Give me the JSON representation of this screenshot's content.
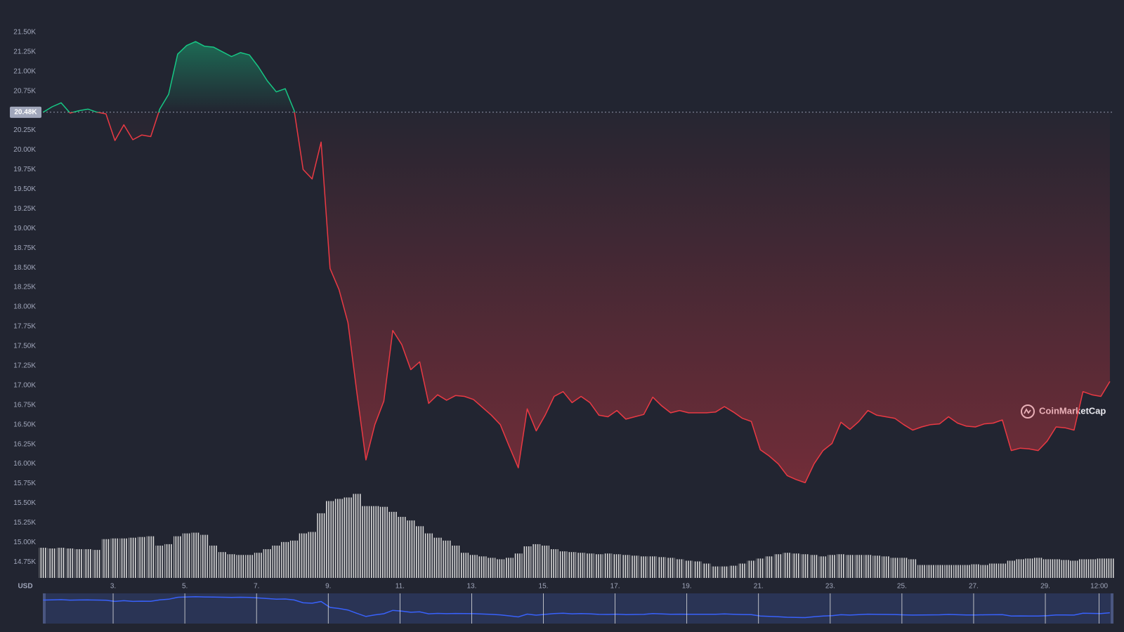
{
  "chart_data": {
    "type": "line",
    "currency": "USD",
    "watermark": "CoinMarketCap",
    "up_color": "#16c784",
    "down_color": "#ea3943",
    "volume_color": "#d9d9d9",
    "navigator_color": "#3861fb",
    "baseline": {
      "value": 20480,
      "label": "20.48K"
    },
    "xlim": [
      1.04,
      30.9
    ],
    "ylim": [
      14520,
      21910
    ],
    "vlim": [
      0,
      130
    ],
    "xticks": [
      {
        "value": 3,
        "label": "3."
      },
      {
        "value": 5,
        "label": "5."
      },
      {
        "value": 7,
        "label": "7."
      },
      {
        "value": 9,
        "label": "9."
      },
      {
        "value": 11,
        "label": "11."
      },
      {
        "value": 13,
        "label": "13."
      },
      {
        "value": 15,
        "label": "15."
      },
      {
        "value": 17,
        "label": "17."
      },
      {
        "value": 19,
        "label": "19."
      },
      {
        "value": 21,
        "label": "21."
      },
      {
        "value": 23,
        "label": "23."
      },
      {
        "value": 25,
        "label": "25."
      },
      {
        "value": 27,
        "label": "27."
      },
      {
        "value": 29,
        "label": "29."
      },
      {
        "value": 30.5,
        "label": "12:00"
      }
    ],
    "yticks": [
      {
        "value": 14750,
        "label": "14.75K"
      },
      {
        "value": 15000,
        "label": "15.00K"
      },
      {
        "value": 15250,
        "label": "15.25K"
      },
      {
        "value": 15500,
        "label": "15.50K"
      },
      {
        "value": 15750,
        "label": "15.75K"
      },
      {
        "value": 16000,
        "label": "16.00K"
      },
      {
        "value": 16250,
        "label": "16.25K"
      },
      {
        "value": 16500,
        "label": "16.50K"
      },
      {
        "value": 16750,
        "label": "16.75K"
      },
      {
        "value": 17000,
        "label": "17.00K"
      },
      {
        "value": 17250,
        "label": "17.25K"
      },
      {
        "value": 17500,
        "label": "17.50K"
      },
      {
        "value": 17750,
        "label": "17.75K"
      },
      {
        "value": 18000,
        "label": "18.00K"
      },
      {
        "value": 18250,
        "label": "18.25K"
      },
      {
        "value": 18500,
        "label": "18.50K"
      },
      {
        "value": 18750,
        "label": "18.75K"
      },
      {
        "value": 19000,
        "label": "19.00K"
      },
      {
        "value": 19250,
        "label": "19.25K"
      },
      {
        "value": 19500,
        "label": "19.50K"
      },
      {
        "value": 19750,
        "label": "19.75K"
      },
      {
        "value": 20000,
        "label": "20.00K"
      },
      {
        "value": 20250,
        "label": "20.25K"
      },
      {
        "value": 20500,
        "label": "20.50K"
      },
      {
        "value": 20750,
        "label": "20.75K"
      },
      {
        "value": 21000,
        "label": "21.00K"
      },
      {
        "value": 21250,
        "label": "21.25K"
      },
      {
        "value": 21500,
        "label": "21.50K"
      }
    ],
    "x": [
      1.05,
      1.3,
      1.55,
      1.8,
      2.05,
      2.3,
      2.55,
      2.8,
      3.05,
      3.3,
      3.55,
      3.8,
      4.05,
      4.3,
      4.55,
      4.8,
      5.05,
      5.3,
      5.55,
      5.8,
      6.05,
      6.3,
      6.55,
      6.8,
      7.05,
      7.3,
      7.55,
      7.8,
      8.05,
      8.3,
      8.55,
      8.8,
      9.05,
      9.3,
      9.55,
      9.8,
      10.05,
      10.3,
      10.55,
      10.8,
      11.05,
      11.3,
      11.55,
      11.8,
      12.05,
      12.3,
      12.55,
      12.8,
      13.05,
      13.3,
      13.55,
      13.8,
      14.05,
      14.3,
      14.55,
      14.8,
      15.05,
      15.3,
      15.55,
      15.8,
      16.05,
      16.3,
      16.55,
      16.8,
      17.05,
      17.3,
      17.55,
      17.8,
      18.05,
      18.3,
      18.55,
      18.8,
      19.05,
      19.3,
      19.55,
      19.8,
      20.05,
      20.3,
      20.55,
      20.8,
      21.05,
      21.3,
      21.55,
      21.8,
      22.05,
      22.3,
      22.55,
      22.8,
      23.05,
      23.3,
      23.55,
      23.8,
      24.05,
      24.3,
      24.55,
      24.8,
      25.05,
      25.3,
      25.55,
      25.8,
      26.05,
      26.3,
      26.55,
      26.8,
      27.05,
      27.3,
      27.55,
      27.8,
      28.05,
      28.3,
      28.55,
      28.8,
      29.05,
      29.3,
      29.55,
      29.8,
      30.05,
      30.3,
      30.55,
      30.8
    ],
    "values": [
      20480,
      20550,
      20600,
      20470,
      20500,
      20520,
      20480,
      20460,
      20120,
      20320,
      20130,
      20190,
      20170,
      20520,
      20710,
      21220,
      21330,
      21380,
      21320,
      21310,
      21250,
      21190,
      21240,
      21210,
      21060,
      20880,
      20740,
      20780,
      20500,
      19750,
      19630,
      20100,
      18490,
      18220,
      17800,
      16900,
      16050,
      16500,
      16800,
      17700,
      17520,
      17200,
      17300,
      16770,
      16880,
      16810,
      16870,
      16860,
      16820,
      16720,
      16620,
      16500,
      16220,
      15950,
      16700,
      16420,
      16620,
      16860,
      16920,
      16780,
      16860,
      16780,
      16620,
      16600,
      16680,
      16570,
      16600,
      16630,
      16850,
      16740,
      16650,
      16680,
      16650,
      16650,
      16650,
      16660,
      16730,
      16660,
      16580,
      16540,
      16180,
      16100,
      16000,
      15850,
      15800,
      15760,
      16000,
      16170,
      16260,
      16530,
      16440,
      16540,
      16680,
      16620,
      16600,
      16580,
      16500,
      16430,
      16470,
      16500,
      16510,
      16600,
      16520,
      16480,
      16470,
      16510,
      16520,
      16560,
      16170,
      16200,
      16190,
      16170,
      16290,
      16470,
      16460,
      16430,
      16920,
      16880,
      16860,
      17050
    ],
    "volume": [
      42,
      41,
      42,
      41,
      40,
      40,
      39,
      54,
      55,
      55,
      56,
      57,
      58,
      45,
      47,
      58,
      62,
      63,
      60,
      45,
      36,
      33,
      32,
      32,
      35,
      40,
      45,
      50,
      52,
      62,
      64,
      90,
      107,
      110,
      112,
      117,
      100,
      100,
      99,
      92,
      85,
      80,
      72,
      62,
      56,
      52,
      45,
      35,
      32,
      30,
      28,
      26,
      28,
      34,
      44,
      47,
      45,
      40,
      37,
      36,
      35,
      34,
      33,
      34,
      33,
      32,
      31,
      30,
      30,
      29,
      28,
      26,
      24,
      23,
      20,
      16,
      16,
      17,
      20,
      24,
      27,
      30,
      33,
      35,
      34,
      33,
      32,
      30,
      32,
      33,
      32,
      32,
      32,
      31,
      30,
      28,
      28,
      26,
      18,
      18,
      18,
      18,
      18,
      18,
      19,
      18,
      20,
      20,
      24,
      26,
      27,
      28,
      26,
      26,
      25,
      24,
      26,
      26,
      27,
      27
    ]
  }
}
